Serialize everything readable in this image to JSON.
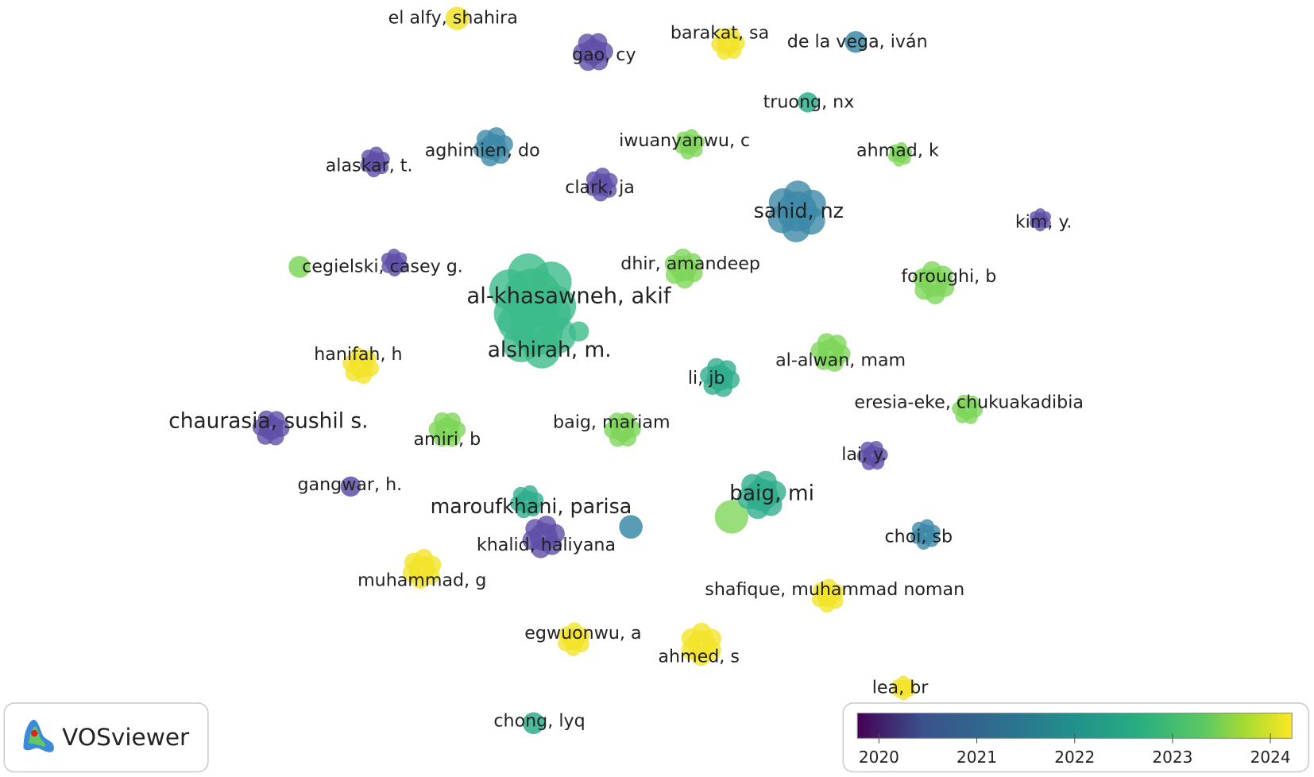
{
  "nodes": [
    {
      "label": "el alfy, shahira",
      "color": "#f2e32a"
    },
    {
      "label": "gao, cy",
      "color": "#5f4fa8"
    },
    {
      "label": "barakat, sa",
      "color": "#f2e32a"
    },
    {
      "label": "de la vega, iván",
      "color": "#3d8aa8"
    },
    {
      "label": "truong, nx",
      "color": "#2fae8c"
    },
    {
      "label": "aghimien, do",
      "color": "#3d8aa8"
    },
    {
      "label": "iwuanyanwu, c",
      "color": "#7ed65a"
    },
    {
      "label": "ahmad, k",
      "color": "#7ed65a"
    },
    {
      "label": "alaskar, t.",
      "color": "#5f4fa8"
    },
    {
      "label": "clark, ja",
      "color": "#5f4fa8"
    },
    {
      "label": "sahid, nz",
      "color": "#3d8aa8"
    },
    {
      "label": "kim, y.",
      "color": "#5f4fa8"
    },
    {
      "label": "cegielski, casey g.",
      "color": "#5f4fa8"
    },
    {
      "label": "dhir, amandeep",
      "color": "#7ed65a"
    },
    {
      "label": "foroughi, b",
      "color": "#7ed65a"
    },
    {
      "label": "al-khasawneh, akif",
      "color": "#3cbc8a"
    },
    {
      "label": "alshirah, m.",
      "color": "#3cbc8a"
    },
    {
      "label": "hanifah, h",
      "color": "#f2e32a"
    },
    {
      "label": "li, jb",
      "color": "#2fae8c"
    },
    {
      "label": "al-alwan, mam",
      "color": "#7ed65a"
    },
    {
      "label": "eresia-eke, chukuakadibia",
      "color": "#7ed65a"
    },
    {
      "label": "chaurasia, sushil s.",
      "color": "#5f4fa8"
    },
    {
      "label": "amiri, b",
      "color": "#7ed65a"
    },
    {
      "label": "baig, mariam",
      "color": "#7ed65a"
    },
    {
      "label": "lai, y.",
      "color": "#5f4fa8"
    },
    {
      "label": "gangwar, h.",
      "color": "#5f4fa8"
    },
    {
      "label": "maroufkhani, parisa",
      "color": "#2fae8c"
    },
    {
      "label": "baig, mi",
      "color": "#2fae8c"
    },
    {
      "label": "khalid, haliyana",
      "color": "#5f4fa8"
    },
    {
      "label": "choi, sb",
      "color": "#3d8aa8"
    },
    {
      "label": "muhammad, g",
      "color": "#f2e32a"
    },
    {
      "label": "shafique, muhammad noman",
      "color": "#f2e32a"
    },
    {
      "label": "egwuonwu, a",
      "color": "#f2e32a"
    },
    {
      "label": "ahmed, s",
      "color": "#f2e32a"
    },
    {
      "label": "lea, br",
      "color": "#f2e32a"
    },
    {
      "label": "chong, lyq",
      "color": "#2fae8c"
    }
  ],
  "colorbar": {
    "range": [
      2019.78,
      2024.22
    ],
    "ticks": [
      2020,
      2021,
      2022,
      2023,
      2024
    ]
  },
  "logo": {
    "text": "VOSviewer"
  }
}
